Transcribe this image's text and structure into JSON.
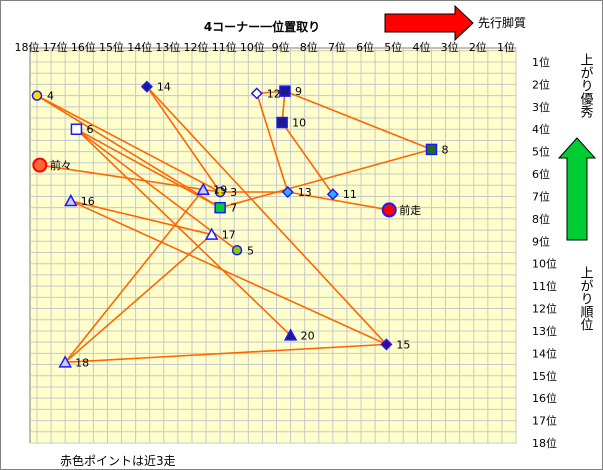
{
  "chart_data": {
    "type": "scatter",
    "title": "4コーナー一位置取り",
    "top_arrow_label": "先行脚質",
    "right_label_top": "上がり優秀",
    "right_label_bottom": "上がり順位",
    "footnote": "赤色ポイントは近3走",
    "x_ticks": [
      "18位",
      "17位",
      "16位",
      "15位",
      "14位",
      "13位",
      "12位",
      "11位",
      "10位",
      "9位",
      "8位",
      "7位",
      "6位",
      "5位",
      "4位",
      "3位",
      "2位",
      "1位"
    ],
    "y_ticks": [
      "1位",
      "2位",
      "3位",
      "4位",
      "5位",
      "6位",
      "7位",
      "8位",
      "9位",
      "10位",
      "11位",
      "12位",
      "13位",
      "14位",
      "15位",
      "16位",
      "17位",
      "18位"
    ],
    "xlim": [
      18,
      1
    ],
    "ylim": [
      1,
      18
    ],
    "colors": {
      "plot_bg": "#ffffcc",
      "grid": "#c8c8c8",
      "line": "#ff6600",
      "red": "#ff0000",
      "green": "#00cc33",
      "navy": "#1a1a8c",
      "blue": "#1a1aff",
      "light_blue": "#33aaff",
      "orange": "#ff9900",
      "yellow": "#ffff00"
    },
    "points": [
      {
        "label": "前々",
        "x": 17.9,
        "y": 5.6,
        "marker": "circle-large",
        "fill": "#ff6633",
        "stroke": "#ff0000"
      },
      {
        "label": "前走",
        "x": 5.5,
        "y": 7.6,
        "marker": "circle-large",
        "fill": "#ff0000",
        "stroke": "#1a1aff"
      },
      {
        "label": "3",
        "x": 11.5,
        "y": 6.8,
        "marker": "circle",
        "fill": "#ffdd00",
        "stroke": "#1a1aff"
      },
      {
        "label": "4",
        "x": 18.0,
        "y": 2.5,
        "marker": "circle",
        "fill": "#ffdd00",
        "stroke": "#1a1aff"
      },
      {
        "label": "5",
        "x": 10.9,
        "y": 9.4,
        "marker": "circle",
        "fill": "#88cc00",
        "stroke": "#1a1aff"
      },
      {
        "label": "6",
        "x": 16.6,
        "y": 4.0,
        "marker": "square",
        "fill": "#ffffff",
        "stroke": "#1a1aff"
      },
      {
        "label": "7",
        "x": 11.5,
        "y": 7.5,
        "marker": "square",
        "fill": "#00cc33",
        "stroke": "#1a1aff"
      },
      {
        "label": "8",
        "x": 4.0,
        "y": 4.9,
        "marker": "square",
        "fill": "#1f6e1f",
        "stroke": "#1a1aff"
      },
      {
        "label": "9",
        "x": 9.2,
        "y": 2.3,
        "marker": "square",
        "fill": "#1a1a8c",
        "stroke": "#1a1aff"
      },
      {
        "label": "10",
        "x": 9.3,
        "y": 3.7,
        "marker": "square",
        "fill": "#1a1a8c",
        "stroke": "#1a1aff"
      },
      {
        "label": "11",
        "x": 7.5,
        "y": 6.9,
        "marker": "diamond",
        "fill": "#33aaff",
        "stroke": "#1a1aff"
      },
      {
        "label": "12",
        "x": 10.2,
        "y": 2.4,
        "marker": "diamond",
        "fill": "#ffffff",
        "stroke": "#1a1aff"
      },
      {
        "label": "13",
        "x": 9.1,
        "y": 6.8,
        "marker": "diamond",
        "fill": "#33aaff",
        "stroke": "#1a1aff"
      },
      {
        "label": "14",
        "x": 14.1,
        "y": 2.1,
        "marker": "diamond",
        "fill": "#1a1a8c",
        "stroke": "#1a1aff"
      },
      {
        "label": "15",
        "x": 5.6,
        "y": 13.6,
        "marker": "diamond",
        "fill": "#4b0082",
        "stroke": "#1a1aff"
      },
      {
        "label": "16",
        "x": 16.8,
        "y": 7.2,
        "marker": "triangle",
        "fill": "#ccccff",
        "stroke": "#1a1aff"
      },
      {
        "label": "17",
        "x": 11.8,
        "y": 8.7,
        "marker": "triangle",
        "fill": "#ffffff",
        "stroke": "#1a1aff"
      },
      {
        "label": "18",
        "x": 17.0,
        "y": 14.4,
        "marker": "triangle",
        "fill": "#ccccff",
        "stroke": "#1a1aff"
      },
      {
        "label": "19",
        "x": 12.1,
        "y": 6.7,
        "marker": "triangle",
        "fill": "#ccccff",
        "stroke": "#1a1aff"
      },
      {
        "label": "20",
        "x": 9.0,
        "y": 13.2,
        "marker": "triangle",
        "fill": "#1a1a8c",
        "stroke": "#1a1aff"
      }
    ],
    "segments": [
      [
        "4",
        "7"
      ],
      [
        "4",
        "3"
      ],
      [
        "6",
        "7"
      ],
      [
        "6",
        "5"
      ],
      [
        "6",
        "20"
      ],
      [
        "14",
        "3"
      ],
      [
        "14",
        "15"
      ],
      [
        "12",
        "13"
      ],
      [
        "12",
        "9"
      ],
      [
        "9",
        "8"
      ],
      [
        "10",
        "11"
      ],
      [
        "10",
        "9"
      ],
      [
        "8",
        "7"
      ],
      [
        "3",
        "前々"
      ],
      [
        "3",
        "13"
      ],
      [
        "13",
        "前走"
      ],
      [
        "16",
        "15"
      ],
      [
        "16",
        "17"
      ],
      [
        "17",
        "18"
      ],
      [
        "19",
        "18"
      ],
      [
        "18",
        "15"
      ]
    ]
  }
}
